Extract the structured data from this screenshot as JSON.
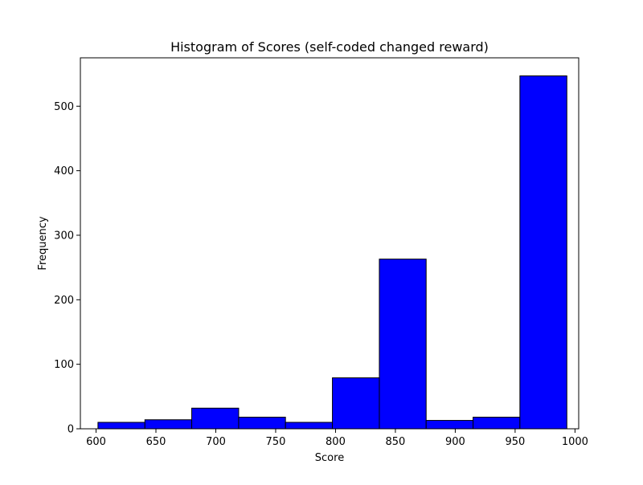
{
  "chart_data": {
    "type": "bar",
    "title": "Histogram of Scores (self-coded changed reward)",
    "xlabel": "Score",
    "ylabel": "Frequency",
    "xlim": [
      586.9,
      1003.1
    ],
    "ylim": [
      0,
      575
    ],
    "x_ticks": [
      600,
      650,
      700,
      750,
      800,
      850,
      900,
      950,
      1000
    ],
    "y_ticks": [
      0,
      100,
      200,
      300,
      400,
      500
    ],
    "bins": [
      {
        "start": 601.6,
        "end": 640.8,
        "count": 10
      },
      {
        "start": 640.8,
        "end": 679.9,
        "count": 14
      },
      {
        "start": 679.9,
        "end": 719.1,
        "count": 32
      },
      {
        "start": 719.1,
        "end": 758.2,
        "count": 18
      },
      {
        "start": 758.2,
        "end": 797.4,
        "count": 10
      },
      {
        "start": 797.4,
        "end": 836.6,
        "count": 79
      },
      {
        "start": 836.6,
        "end": 875.7,
        "count": 263
      },
      {
        "start": 875.7,
        "end": 914.9,
        "count": 13
      },
      {
        "start": 914.9,
        "end": 954.0,
        "count": 18
      },
      {
        "start": 954.0,
        "end": 993.2,
        "count": 547
      }
    ],
    "bar_color": "#0000ff",
    "edge_color": "#000000",
    "grid": false,
    "legend": "none"
  }
}
